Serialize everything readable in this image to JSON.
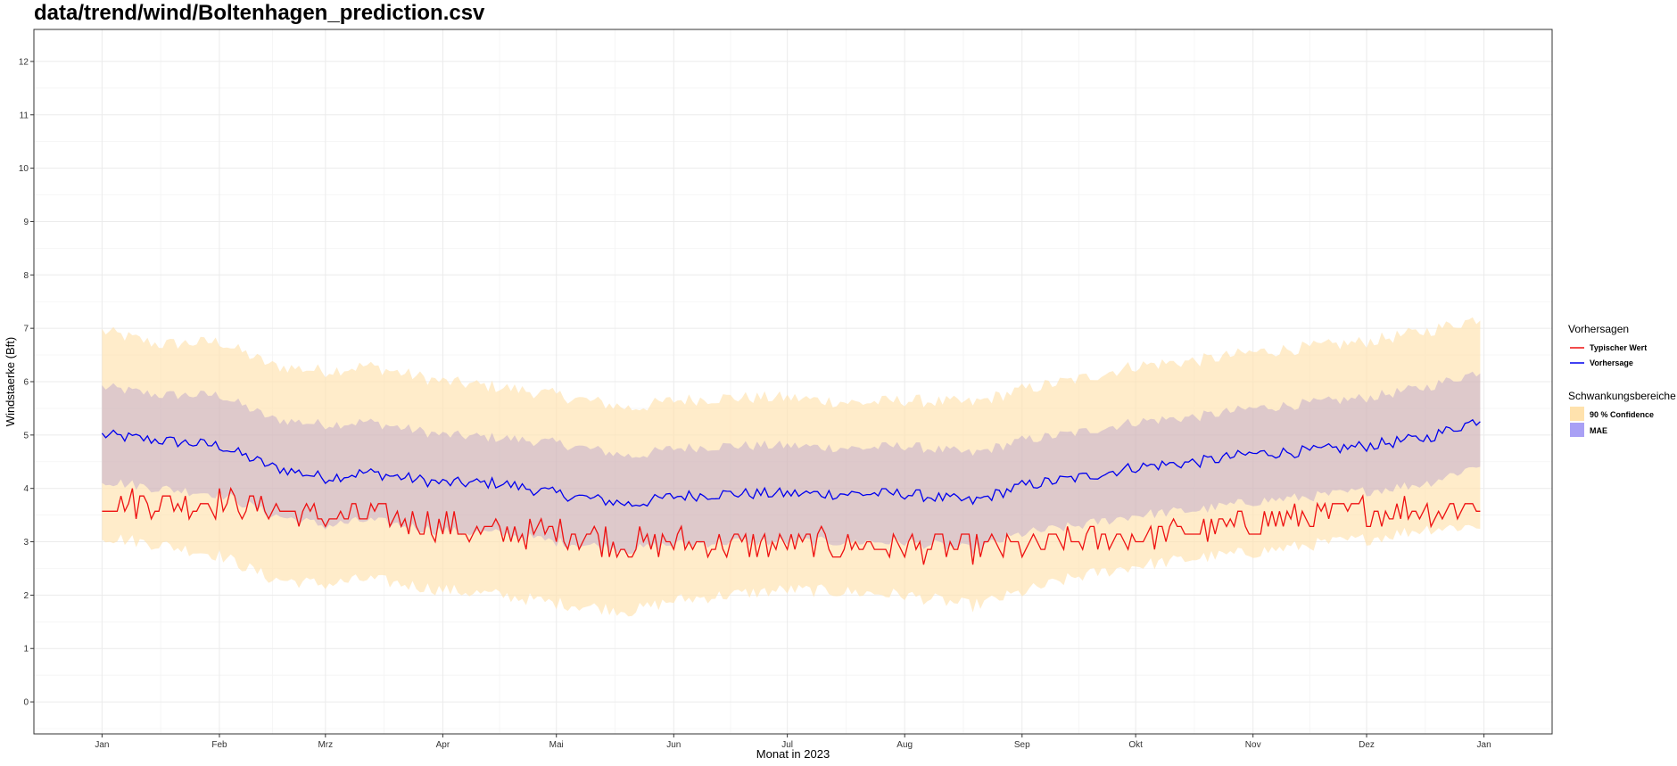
{
  "chart_data": {
    "type": "line",
    "title": "data/trend/wind/Boltenhagen_prediction.csv",
    "xlabel": "Monat in 2023",
    "ylabel": "Windstaerke (Bft)",
    "ylim": [
      -0.6,
      12.6
    ],
    "yticks": [
      "0",
      "1",
      "2",
      "3",
      "4",
      "5",
      "6",
      "7",
      "8",
      "9",
      "10",
      "11",
      "12"
    ],
    "x_tick_labels": [
      "Jan",
      "Feb",
      "Mrz",
      "Apr",
      "Mai",
      "Jun",
      "Jul",
      "Aug",
      "Sep",
      "Okt",
      "Nov",
      "Dez",
      "Jan"
    ],
    "x_tick_days": [
      0,
      31,
      59,
      90,
      120,
      151,
      181,
      212,
      243,
      273,
      304,
      334,
      365
    ],
    "xlim_days": [
      -18,
      383
    ],
    "grid": true,
    "legend": {
      "lines_title": "Vorhersagen",
      "lines": [
        {
          "name": "Typischer Wert",
          "color": "#ee1111"
        },
        {
          "name": "Vorhersage",
          "color": "#0000ee"
        }
      ],
      "bands_title": "Schwankungsbereiche",
      "bands": [
        {
          "name": "90 % Confidence",
          "color": "#ffe8c2"
        },
        {
          "name": "MAE",
          "color": "#a9a0f5"
        }
      ]
    },
    "series": [
      {
        "name": "Vorhersage",
        "color": "#0000ee",
        "x": [
          0,
          15,
          31,
          45,
          59,
          70,
          90,
          105,
          120,
          140,
          151,
          165,
          181,
          200,
          212,
          230,
          243,
          258,
          273,
          290,
          304,
          320,
          334,
          350,
          364
        ],
        "y": [
          5.0,
          4.9,
          4.8,
          4.4,
          4.2,
          4.3,
          4.1,
          4.1,
          3.9,
          3.7,
          3.85,
          3.9,
          3.9,
          3.9,
          3.9,
          3.75,
          4.05,
          4.2,
          4.4,
          4.5,
          4.65,
          4.7,
          4.8,
          4.95,
          5.3
        ]
      },
      {
        "name": "Typischer Wert",
        "color": "#ee1111",
        "x": [
          0,
          15,
          31,
          45,
          59,
          70,
          90,
          105,
          120,
          140,
          151,
          165,
          181,
          200,
          212,
          230,
          243,
          258,
          273,
          290,
          304,
          320,
          334,
          350,
          364
        ],
        "y": [
          3.75,
          3.7,
          3.75,
          3.6,
          3.45,
          3.5,
          3.3,
          3.15,
          3.2,
          2.95,
          3.0,
          2.95,
          2.95,
          2.95,
          2.9,
          2.9,
          2.9,
          3.0,
          3.1,
          3.2,
          3.35,
          3.5,
          3.6,
          3.6,
          3.7
        ]
      },
      {
        "name": "MAE upper",
        "band": "MAE",
        "x": [
          0,
          15,
          31,
          45,
          59,
          70,
          90,
          105,
          120,
          140,
          151,
          165,
          181,
          200,
          212,
          230,
          243,
          258,
          273,
          290,
          304,
          320,
          334,
          350,
          364
        ],
        "y": [
          5.9,
          5.75,
          5.75,
          5.3,
          5.2,
          5.25,
          5.0,
          4.95,
          4.85,
          4.6,
          4.75,
          4.8,
          4.8,
          4.75,
          4.8,
          4.65,
          4.9,
          5.05,
          5.25,
          5.35,
          5.5,
          5.6,
          5.7,
          5.9,
          6.2
        ]
      },
      {
        "name": "MAE lower",
        "band": "MAE",
        "x": [
          0,
          15,
          31,
          45,
          59,
          70,
          90,
          105,
          120,
          140,
          151,
          165,
          181,
          200,
          212,
          230,
          243,
          258,
          273,
          290,
          304,
          320,
          334,
          350,
          364
        ],
        "y": [
          4.15,
          4.0,
          3.9,
          3.5,
          3.3,
          3.4,
          3.2,
          3.15,
          3.0,
          2.85,
          2.95,
          3.0,
          3.0,
          3.0,
          3.0,
          2.85,
          3.15,
          3.3,
          3.5,
          3.6,
          3.75,
          3.85,
          3.95,
          4.1,
          4.45
        ]
      },
      {
        "name": "90 % Confidence upper",
        "band": "90 % Confidence",
        "x": [
          0,
          15,
          31,
          45,
          59,
          70,
          90,
          105,
          120,
          140,
          151,
          165,
          181,
          200,
          212,
          230,
          243,
          258,
          273,
          290,
          304,
          320,
          334,
          350,
          364
        ],
        "y": [
          6.95,
          6.7,
          6.75,
          6.3,
          6.2,
          6.3,
          6.0,
          5.9,
          5.75,
          5.5,
          5.65,
          5.7,
          5.7,
          5.6,
          5.65,
          5.6,
          5.85,
          6.05,
          6.3,
          6.4,
          6.55,
          6.65,
          6.75,
          6.95,
          7.2
        ]
      },
      {
        "name": "90 % Confidence lower",
        "band": "90 % Confidence",
        "x": [
          0,
          15,
          31,
          45,
          59,
          70,
          90,
          105,
          120,
          140,
          151,
          165,
          181,
          200,
          212,
          230,
          243,
          258,
          273,
          290,
          304,
          320,
          334,
          350,
          364
        ],
        "y": [
          3.1,
          2.95,
          2.75,
          2.3,
          2.2,
          2.3,
          2.1,
          2.0,
          1.85,
          1.7,
          1.9,
          2.0,
          2.1,
          2.05,
          2.0,
          1.8,
          2.05,
          2.35,
          2.55,
          2.7,
          2.8,
          2.95,
          3.05,
          3.25,
          3.3
        ]
      }
    ]
  }
}
